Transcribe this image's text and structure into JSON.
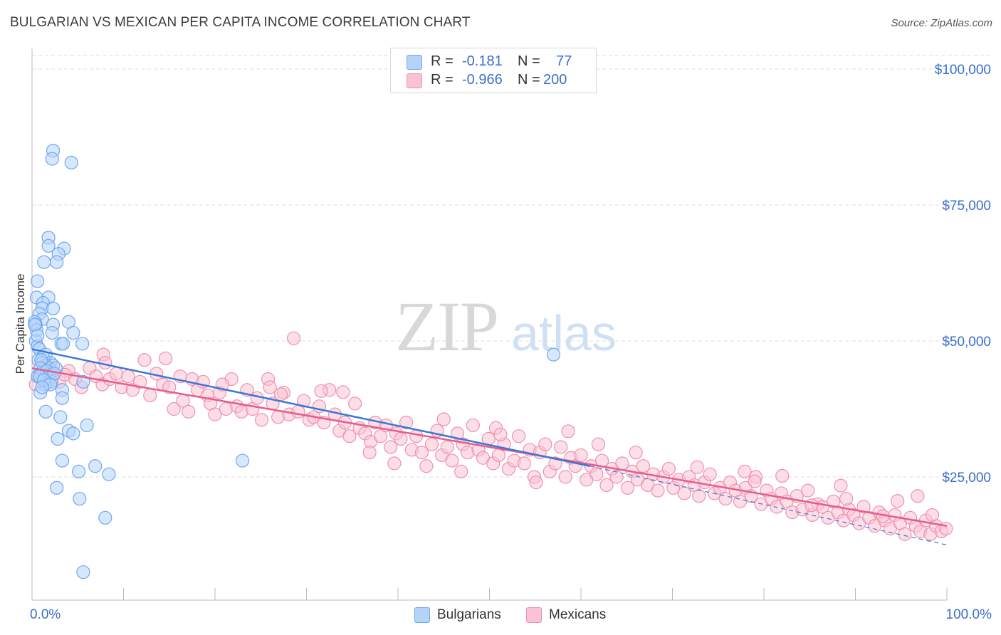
{
  "title": "BULGARIAN VS MEXICAN PER CAPITA INCOME CORRELATION CHART",
  "source": "Source: ZipAtlas.com",
  "watermark": {
    "zip": "ZIP",
    "atlas": "atlas"
  },
  "legend": {
    "rows": [
      {
        "r_label": "R =",
        "r_value": "-0.181",
        "n_label": "N =",
        "n_value": "77",
        "color": "#6fa8f0",
        "fill": "#b6d3fa"
      },
      {
        "r_label": "R =",
        "r_value": "-0.966",
        "n_label": "N =",
        "n_value": "200",
        "color": "#f090b0",
        "fill": "#fac3d4"
      }
    ]
  },
  "bottom_legend": [
    {
      "label": "Bulgarians",
      "color": "#6fa8f0",
      "fill": "#b6d3fa"
    },
    {
      "label": "Mexicans",
      "color": "#f090b0",
      "fill": "#fac3d4"
    }
  ],
  "chart_data": {
    "type": "scatter",
    "title": "BULGARIAN VS MEXICAN PER CAPITA INCOME CORRELATION CHART",
    "xlabel": "",
    "ylabel": "Per Capita Income",
    "x_tick_labels": [
      "0.0%",
      "100.0%"
    ],
    "y_tick_labels": [
      "$100,000",
      "$75,000",
      "$50,000",
      "$25,000"
    ],
    "y_tick_values": [
      100000,
      75000,
      50000,
      25000
    ],
    "xlim": [
      0,
      100
    ],
    "ylim": [
      0,
      105000
    ],
    "grid": "horizontal dashed",
    "legend_placement": "bottom-center",
    "series": [
      {
        "name": "Bulgarians",
        "color": "#3a78d8",
        "fill": "#b6d3fa",
        "trend": {
          "x": [
            0,
            61
          ],
          "y": [
            48500,
            27000
          ]
        },
        "trend_dashed": {
          "x": [
            61,
            100
          ],
          "y": [
            27000,
            12500
          ]
        },
        "points": [
          [
            2.3,
            85000
          ],
          [
            2.2,
            83500
          ],
          [
            4.3,
            82800
          ],
          [
            1.8,
            69000
          ],
          [
            1.8,
            67500
          ],
          [
            3.5,
            67000
          ],
          [
            2.9,
            66000
          ],
          [
            1.3,
            64500
          ],
          [
            2.7,
            64500
          ],
          [
            0.6,
            61000
          ],
          [
            0.5,
            58000
          ],
          [
            1.8,
            58000
          ],
          [
            1.2,
            57000
          ],
          [
            1.1,
            56000
          ],
          [
            2.3,
            56000
          ],
          [
            0.8,
            55000
          ],
          [
            1.1,
            54000
          ],
          [
            4.0,
            53500
          ],
          [
            0.3,
            53500
          ],
          [
            0.4,
            53000
          ],
          [
            2.3,
            53000
          ],
          [
            0.5,
            52000
          ],
          [
            2.2,
            51500
          ],
          [
            4.5,
            51500
          ],
          [
            0.4,
            50000
          ],
          [
            3.2,
            49500
          ],
          [
            3.4,
            49500
          ],
          [
            5.5,
            49500
          ],
          [
            0.6,
            49000
          ],
          [
            0.8,
            48500
          ],
          [
            1.5,
            47500
          ],
          [
            1.2,
            47000
          ],
          [
            0.7,
            46500
          ],
          [
            1.1,
            46000
          ],
          [
            2.0,
            46000
          ],
          [
            2.3,
            45500
          ],
          [
            1.5,
            45500
          ],
          [
            1.9,
            45000
          ],
          [
            1.2,
            44500
          ],
          [
            2.6,
            45000
          ],
          [
            1.0,
            44000
          ],
          [
            0.6,
            43500
          ],
          [
            1.9,
            43500
          ],
          [
            1.4,
            43000
          ],
          [
            1.7,
            42500
          ],
          [
            2.1,
            42500
          ],
          [
            1.4,
            42000
          ],
          [
            5.6,
            42500
          ],
          [
            3.3,
            41000
          ],
          [
            3.3,
            39500
          ],
          [
            1.5,
            37000
          ],
          [
            3.1,
            36000
          ],
          [
            6.0,
            34500
          ],
          [
            4.0,
            33500
          ],
          [
            4.5,
            33000
          ],
          [
            2.8,
            32000
          ],
          [
            3.3,
            28000
          ],
          [
            23.0,
            28000
          ],
          [
            5.1,
            26000
          ],
          [
            6.9,
            27000
          ],
          [
            8.4,
            25500
          ],
          [
            2.7,
            23000
          ],
          [
            5.2,
            21000
          ],
          [
            8.0,
            17500
          ],
          [
            5.6,
            7500
          ],
          [
            57.0,
            47500
          ],
          [
            0.3,
            53000
          ],
          [
            0.6,
            51000
          ],
          [
            1.0,
            46500
          ],
          [
            0.9,
            45000
          ],
          [
            1.6,
            44500
          ],
          [
            2.4,
            44000
          ],
          [
            0.8,
            43500
          ],
          [
            1.3,
            42800
          ],
          [
            2.0,
            42000
          ],
          [
            0.9,
            40500
          ],
          [
            1.1,
            41500
          ]
        ]
      },
      {
        "name": "Mexicans",
        "color": "#e55d8b",
        "fill": "#fac3d4",
        "trend": {
          "x": [
            0,
            100
          ],
          "y": [
            45000,
            16000
          ]
        },
        "points": [
          [
            0.4,
            42000
          ],
          [
            0.9,
            43500
          ],
          [
            1.7,
            44000
          ],
          [
            2.2,
            43000
          ],
          [
            3.0,
            42500
          ],
          [
            4.0,
            44500
          ],
          [
            4.7,
            43000
          ],
          [
            5.4,
            41500
          ],
          [
            6.3,
            45000
          ],
          [
            7.0,
            43500
          ],
          [
            7.7,
            42000
          ],
          [
            7.8,
            47500
          ],
          [
            8.5,
            43000
          ],
          [
            9.2,
            44000
          ],
          [
            9.8,
            41500
          ],
          [
            10.5,
            43500
          ],
          [
            11.0,
            41000
          ],
          [
            11.8,
            42500
          ],
          [
            12.3,
            46500
          ],
          [
            12.9,
            40000
          ],
          [
            13.6,
            44000
          ],
          [
            14.3,
            42000
          ],
          [
            15.0,
            41500
          ],
          [
            15.5,
            37500
          ],
          [
            16.2,
            43500
          ],
          [
            16.5,
            39000
          ],
          [
            17.1,
            37000
          ],
          [
            17.5,
            43000
          ],
          [
            18.1,
            41000
          ],
          [
            18.7,
            42500
          ],
          [
            19.2,
            40000
          ],
          [
            19.5,
            38500
          ],
          [
            20.0,
            36500
          ],
          [
            20.5,
            40500
          ],
          [
            21.2,
            37500
          ],
          [
            21.8,
            43000
          ],
          [
            22.4,
            38000
          ],
          [
            22.9,
            37000
          ],
          [
            23.5,
            41000
          ],
          [
            24.1,
            37500
          ],
          [
            24.6,
            39500
          ],
          [
            25.1,
            35500
          ],
          [
            25.8,
            43000
          ],
          [
            26.3,
            38500
          ],
          [
            26.9,
            36000
          ],
          [
            27.5,
            40500
          ],
          [
            28.1,
            36500
          ],
          [
            28.6,
            50500
          ],
          [
            29.1,
            37000
          ],
          [
            29.7,
            39000
          ],
          [
            30.3,
            35500
          ],
          [
            30.8,
            36000
          ],
          [
            31.4,
            38000
          ],
          [
            31.9,
            35000
          ],
          [
            32.5,
            41000
          ],
          [
            33.1,
            36500
          ],
          [
            33.6,
            33500
          ],
          [
            34.2,
            35000
          ],
          [
            34.7,
            32500
          ],
          [
            35.3,
            38500
          ],
          [
            35.8,
            34000
          ],
          [
            36.4,
            33000
          ],
          [
            37.0,
            31500
          ],
          [
            37.5,
            35000
          ],
          [
            38.1,
            32500
          ],
          [
            38.7,
            34500
          ],
          [
            39.2,
            30500
          ],
          [
            39.8,
            33000
          ],
          [
            40.3,
            32000
          ],
          [
            40.9,
            35000
          ],
          [
            41.5,
            30000
          ],
          [
            42.0,
            32500
          ],
          [
            42.6,
            29500
          ],
          [
            43.1,
            27000
          ],
          [
            43.7,
            31000
          ],
          [
            44.3,
            33500
          ],
          [
            44.8,
            29000
          ],
          [
            45.4,
            30500
          ],
          [
            45.9,
            28000
          ],
          [
            46.5,
            33000
          ],
          [
            47.1,
            31000
          ],
          [
            47.6,
            29500
          ],
          [
            48.2,
            34500
          ],
          [
            48.8,
            30000
          ],
          [
            49.3,
            28500
          ],
          [
            49.9,
            32000
          ],
          [
            50.4,
            27500
          ],
          [
            51.0,
            29000
          ],
          [
            51.6,
            31000
          ],
          [
            52.1,
            26500
          ],
          [
            52.7,
            28000
          ],
          [
            53.2,
            32500
          ],
          [
            53.8,
            27500
          ],
          [
            54.4,
            30000
          ],
          [
            54.9,
            25000
          ],
          [
            55.5,
            29500
          ],
          [
            56.1,
            31000
          ],
          [
            56.6,
            26000
          ],
          [
            57.2,
            27500
          ],
          [
            57.8,
            30500
          ],
          [
            58.3,
            25000
          ],
          [
            58.9,
            28500
          ],
          [
            59.4,
            27000
          ],
          [
            60.0,
            29000
          ],
          [
            60.6,
            24500
          ],
          [
            61.1,
            27000
          ],
          [
            61.7,
            25500
          ],
          [
            62.3,
            28000
          ],
          [
            62.8,
            23500
          ],
          [
            63.4,
            26500
          ],
          [
            63.9,
            25000
          ],
          [
            64.5,
            27500
          ],
          [
            65.1,
            23000
          ],
          [
            65.6,
            26000
          ],
          [
            66.2,
            24500
          ],
          [
            66.8,
            27000
          ],
          [
            67.3,
            23500
          ],
          [
            67.9,
            25500
          ],
          [
            68.4,
            22500
          ],
          [
            69.0,
            25000
          ],
          [
            69.6,
            26500
          ],
          [
            70.1,
            23000
          ],
          [
            70.7,
            24500
          ],
          [
            71.3,
            22000
          ],
          [
            71.8,
            25000
          ],
          [
            72.4,
            23500
          ],
          [
            72.9,
            21500
          ],
          [
            73.5,
            24000
          ],
          [
            74.1,
            25500
          ],
          [
            74.6,
            22000
          ],
          [
            75.2,
            23000
          ],
          [
            75.8,
            21000
          ],
          [
            76.3,
            24000
          ],
          [
            76.9,
            22500
          ],
          [
            77.4,
            20500
          ],
          [
            78.0,
            23000
          ],
          [
            78.6,
            21500
          ],
          [
            79.1,
            25000
          ],
          [
            79.7,
            20000
          ],
          [
            80.3,
            22500
          ],
          [
            80.8,
            21000
          ],
          [
            81.4,
            19500
          ],
          [
            81.9,
            22000
          ],
          [
            82.5,
            20500
          ],
          [
            83.1,
            18500
          ],
          [
            83.6,
            21500
          ],
          [
            84.2,
            19000
          ],
          [
            84.8,
            22500
          ],
          [
            85.3,
            18000
          ],
          [
            85.9,
            20000
          ],
          [
            86.4,
            19500
          ],
          [
            87.0,
            17500
          ],
          [
            87.6,
            20500
          ],
          [
            88.1,
            18500
          ],
          [
            88.7,
            17000
          ],
          [
            89.3,
            19000
          ],
          [
            89.8,
            18000
          ],
          [
            90.4,
            16500
          ],
          [
            90.9,
            19500
          ],
          [
            91.5,
            17500
          ],
          [
            92.1,
            16000
          ],
          [
            92.6,
            18500
          ],
          [
            93.2,
            17000
          ],
          [
            93.8,
            15500
          ],
          [
            94.3,
            18000
          ],
          [
            94.9,
            16500
          ],
          [
            95.4,
            14500
          ],
          [
            96.0,
            17500
          ],
          [
            96.6,
            16000
          ],
          [
            97.1,
            15000
          ],
          [
            97.7,
            17000
          ],
          [
            98.2,
            14500
          ],
          [
            98.8,
            16000
          ],
          [
            99.4,
            15000
          ],
          [
            99.9,
            15500
          ],
          [
            66.0,
            29500
          ],
          [
            50.7,
            34000
          ],
          [
            46.9,
            26000
          ],
          [
            39.6,
            27500
          ],
          [
            36.9,
            29500
          ],
          [
            55.1,
            24000
          ],
          [
            61.9,
            31000
          ],
          [
            72.7,
            26800
          ],
          [
            77.9,
            26000
          ],
          [
            82.0,
            25200
          ],
          [
            85.2,
            19800
          ],
          [
            89.0,
            21000
          ],
          [
            93.0,
            17800
          ],
          [
            96.8,
            21500
          ],
          [
            98.4,
            18000
          ],
          [
            3.6,
            43800
          ],
          [
            8.0,
            46000
          ],
          [
            14.6,
            46800
          ],
          [
            20.8,
            42000
          ],
          [
            26.0,
            41500
          ],
          [
            31.6,
            40800
          ],
          [
            34.0,
            40600
          ],
          [
            27.2,
            40200
          ],
          [
            45.0,
            35600
          ],
          [
            51.2,
            32800
          ],
          [
            58.6,
            33400
          ],
          [
            79.0,
            24200
          ],
          [
            88.4,
            23400
          ],
          [
            94.6,
            20600
          ]
        ]
      }
    ]
  }
}
